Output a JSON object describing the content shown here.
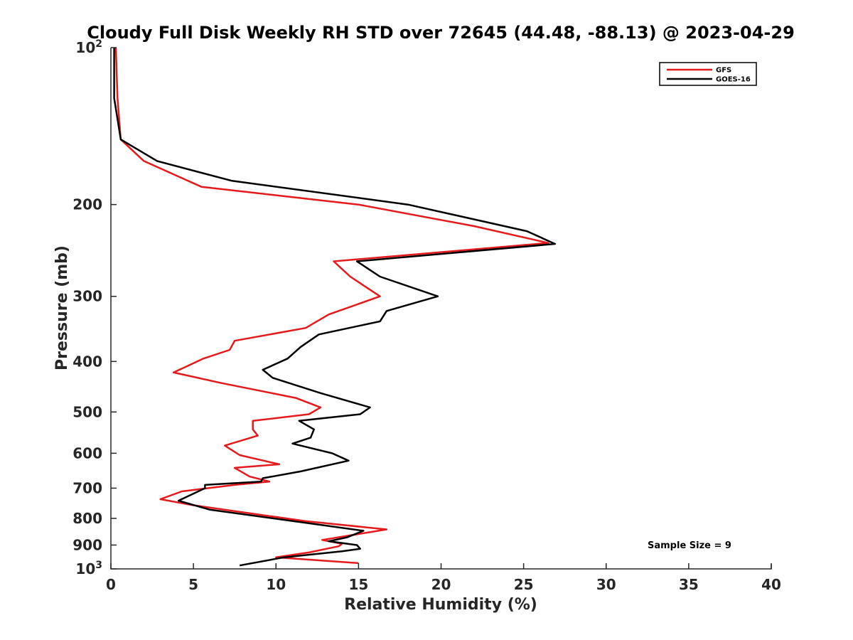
{
  "chart_data": {
    "type": "line",
    "title": "Cloudy Full Disk Weekly RH STD over 72645 (44.48, -88.13) @ 2023-04-29",
    "xlabel": "Relative Humidity (%)",
    "ylabel": "Pressure (mb)",
    "xlim": [
      0,
      40
    ],
    "ylim": [
      100,
      1000
    ],
    "yscale": "log",
    "y_reversed": true,
    "grid": false,
    "legend_position": "top-right",
    "x_ticks": [
      "0",
      "5",
      "10",
      "15",
      "20",
      "25",
      "30",
      "35",
      "40"
    ],
    "y_ticks": [
      {
        "value": 100,
        "base": "10",
        "exp": "2"
      },
      {
        "value": 200,
        "label": "200"
      },
      {
        "value": 300,
        "label": "300"
      },
      {
        "value": 400,
        "label": "400"
      },
      {
        "value": 500,
        "label": "500"
      },
      {
        "value": 600,
        "label": "600"
      },
      {
        "value": 700,
        "label": "700"
      },
      {
        "value": 800,
        "label": "800"
      },
      {
        "value": 900,
        "label": "900"
      },
      {
        "value": 1000,
        "base": "10",
        "exp": "3"
      }
    ],
    "annotation": "Sample Size = 9",
    "series": [
      {
        "name": "GFS",
        "color": "#e41a1c",
        "points": [
          [
            0.3,
            100
          ],
          [
            0.4,
            125
          ],
          [
            0.6,
            150
          ],
          [
            2.0,
            165
          ],
          [
            5.5,
            185
          ],
          [
            15.0,
            200
          ],
          [
            22.0,
            220
          ],
          [
            26.5,
            237
          ],
          [
            13.5,
            257
          ],
          [
            14.5,
            275
          ],
          [
            16.3,
            300
          ],
          [
            13.2,
            325
          ],
          [
            11.8,
            345
          ],
          [
            7.5,
            365
          ],
          [
            7.2,
            380
          ],
          [
            5.6,
            395
          ],
          [
            3.8,
            420
          ],
          [
            6.7,
            440
          ],
          [
            11.2,
            470
          ],
          [
            12.7,
            490
          ],
          [
            12.0,
            505
          ],
          [
            8.6,
            520
          ],
          [
            8.6,
            540
          ],
          [
            8.9,
            555
          ],
          [
            6.9,
            580
          ],
          [
            7.8,
            605
          ],
          [
            10.2,
            630
          ],
          [
            7.5,
            640
          ],
          [
            8.4,
            665
          ],
          [
            9.6,
            680
          ],
          [
            7.5,
            690
          ],
          [
            4.3,
            710
          ],
          [
            3.0,
            735
          ],
          [
            5.0,
            755
          ],
          [
            11.8,
            810
          ],
          [
            16.7,
            840
          ],
          [
            12.8,
            880
          ],
          [
            14.0,
            895
          ],
          [
            13.8,
            905
          ],
          [
            12.0,
            930
          ],
          [
            10.0,
            950
          ],
          [
            15.0,
            975
          ]
        ]
      },
      {
        "name": "GOES-16",
        "color": "#000000",
        "points": [
          [
            0.2,
            100
          ],
          [
            0.2,
            125
          ],
          [
            0.6,
            150
          ],
          [
            2.8,
            165
          ],
          [
            7.3,
            180
          ],
          [
            18.0,
            200
          ],
          [
            25.2,
            225
          ],
          [
            26.9,
            238
          ],
          [
            14.9,
            257
          ],
          [
            16.3,
            275
          ],
          [
            19.8,
            300
          ],
          [
            16.7,
            320
          ],
          [
            16.3,
            335
          ],
          [
            12.6,
            355
          ],
          [
            11.5,
            375
          ],
          [
            10.7,
            395
          ],
          [
            9.2,
            415
          ],
          [
            9.8,
            430
          ],
          [
            12.7,
            460
          ],
          [
            15.7,
            490
          ],
          [
            15.1,
            505
          ],
          [
            11.4,
            520
          ],
          [
            12.3,
            540
          ],
          [
            12.1,
            560
          ],
          [
            11.0,
            575
          ],
          [
            13.4,
            600
          ],
          [
            14.4,
            620
          ],
          [
            11.5,
            650
          ],
          [
            9.2,
            670
          ],
          [
            9.1,
            680
          ],
          [
            5.7,
            690
          ],
          [
            5.7,
            700
          ],
          [
            4.1,
            740
          ],
          [
            6.0,
            770
          ],
          [
            11.7,
            815
          ],
          [
            15.3,
            845
          ],
          [
            14.3,
            870
          ],
          [
            13.2,
            885
          ],
          [
            14.9,
            900
          ],
          [
            15.1,
            915
          ],
          [
            14.0,
            925
          ],
          [
            10.5,
            950
          ],
          [
            7.8,
            985
          ]
        ]
      }
    ]
  }
}
